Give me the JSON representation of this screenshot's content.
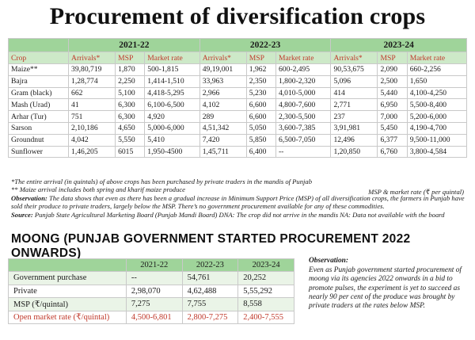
{
  "title": "Procurement of diversification crops",
  "main_table": {
    "years": [
      "2021-22",
      "2022-23",
      "2023-24"
    ],
    "headers": [
      "Crop",
      "Arrivals*",
      "MSP",
      "Market rate",
      "Arrivals*",
      "MSP",
      "Market rate",
      "Arrivals*",
      "MSP",
      "Market rate"
    ],
    "rows": [
      [
        "Maize**",
        "39,80,719",
        "1,870",
        "500-1,815",
        "49,19,001",
        "1,962",
        "600-2,495",
        "90,53,675",
        "2,090",
        "660-2,256"
      ],
      [
        "Bajra",
        "1,28,774",
        "2,250",
        "1,414-1,510",
        "33,963",
        "2,350",
        "1,800-2,320",
        "5,096",
        "2,500",
        "1,650"
      ],
      [
        "Gram (black)",
        "662",
        "5,100",
        "4,418-5,295",
        "2,966",
        "5,230",
        "4,010-5,000",
        "414",
        "5,440",
        "4,100-4,250"
      ],
      [
        "Mash (Urad)",
        "41",
        "6,300",
        "6,100-6,500",
        "4,102",
        "6,600",
        "4,800-7,600",
        "2,771",
        "6,950",
        "5,500-8,400"
      ],
      [
        "Arhar (Tur)",
        "751",
        "6,300",
        "4,920",
        "289",
        "6,600",
        "2,300-5,500",
        "237",
        "7,000",
        "5,200-6,000"
      ],
      [
        "Sarson",
        "2,10,186",
        "4,650",
        "5,000-6,000",
        "4,51,342",
        "5,050",
        "3,600-7,385",
        "3,91,981",
        "5,450",
        "4,190-4,700"
      ],
      [
        "Groundnut",
        "4,042",
        "5,550",
        "5,410",
        "7,420",
        "5,850",
        "6,500-7,050",
        "12,496",
        "6,377",
        "9,500-11,000"
      ],
      [
        "Sunflower",
        "1,46,205",
        "6015",
        "1,950-4500",
        "1,45,711",
        "6,400",
        "--",
        "1,20,850",
        "6,760",
        "3,800-4,584"
      ]
    ]
  },
  "notes": {
    "note1": "*The entire arrival (in quintals) of above crops has been purchased by private traders in the mandis of Punjab",
    "note2": "** Maize arrival includes both spring and kharif maize produce",
    "unit": "MSP & market rate (₹ per quintal)",
    "observation_label": "Observation:",
    "observation_text": " The data shows that even as there has been a gradual increase in Minimum Support Price (MSP) of all diversification crops, the farmers in Punjab have sold their produce to private traders, largely below the MSP. There’s no government procurement available for any of these commodities.",
    "source_label": "Source:",
    "source_text": " Punjab State Agricultural Marketing Board (Punjab Mandi Board) DNA: The crop did not arrive in the mandis NA: Data not available with the board"
  },
  "moong": {
    "section_title": "MOONG (PUNJAB GOVERNMENT STARTED PROCUREMENT 2022 ONWARDS)",
    "years": [
      "2021-22",
      "2022-23",
      "2023-24"
    ],
    "rows": [
      [
        "Government purchase",
        "--",
        "54,761",
        "20,252"
      ],
      [
        "Private",
        "2,98,070",
        "4,62,488",
        "5,55,292"
      ],
      [
        "MSP (₹/quintal)",
        "7,275",
        "7,755",
        "8,558"
      ],
      [
        "Open market rate (₹/quintal)",
        "4,500-6,801",
        "2,800-7,275",
        "2,400-7,555"
      ]
    ],
    "observation_label": "Observation:",
    "observation_text": "Even as Punjab government started procurement of moong via its agencies 2022 onwards in a bid to promote pulses, the experiment is yet to succeed as nearly 90 per cent of the produce was brought by private traders at the rates below MSP."
  }
}
